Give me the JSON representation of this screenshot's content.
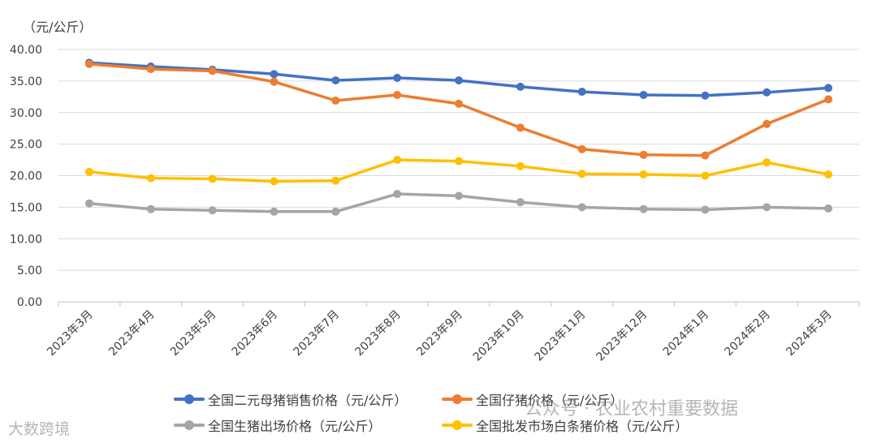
{
  "chart_data": {
    "type": "line",
    "unit_label": "（元/公斤）",
    "categories": [
      "2023年3月",
      "2023年4月",
      "2023年5月",
      "2023年6月",
      "2023年7月",
      "2023年8月",
      "2023年9月",
      "2023年10月",
      "2023年11月",
      "2023年12月",
      "2024年1月",
      "2024年2月",
      "2024年3月"
    ],
    "yticks": [
      "0.00",
      "5.00",
      "10.00",
      "15.00",
      "20.00",
      "25.00",
      "30.00",
      "35.00",
      "40.00"
    ],
    "ylim": [
      0,
      40
    ],
    "grid": true,
    "legend_position": "bottom",
    "series": [
      {
        "name": "全国二元母猪销售价格（元/公斤）",
        "color": "#4472C4",
        "values": [
          37.9,
          37.3,
          36.8,
          36.1,
          35.1,
          35.5,
          35.1,
          34.1,
          33.3,
          32.8,
          32.7,
          33.2,
          33.9
        ]
      },
      {
        "name": "全国仔猪价格（元/公斤）",
        "color": "#ED7D31",
        "values": [
          37.7,
          36.9,
          36.6,
          34.9,
          31.9,
          32.8,
          31.4,
          27.6,
          24.2,
          23.3,
          23.2,
          28.2,
          32.1
        ]
      },
      {
        "name": "全国生猪出场价格（元/公斤）",
        "color": "#A5A5A5",
        "values": [
          15.6,
          14.7,
          14.5,
          14.3,
          14.3,
          17.1,
          16.8,
          15.8,
          15.0,
          14.7,
          14.6,
          15.0,
          14.8
        ]
      },
      {
        "name": "全国批发市场白条猪价格（元/公斤）",
        "color": "#FFC000",
        "values": [
          20.6,
          19.6,
          19.5,
          19.1,
          19.2,
          22.5,
          22.3,
          21.5,
          20.3,
          20.2,
          20.0,
          22.1,
          20.2
        ]
      }
    ]
  },
  "watermarks": {
    "right": "公众号 · 农业农村重要数据",
    "left": "大数跨境"
  }
}
